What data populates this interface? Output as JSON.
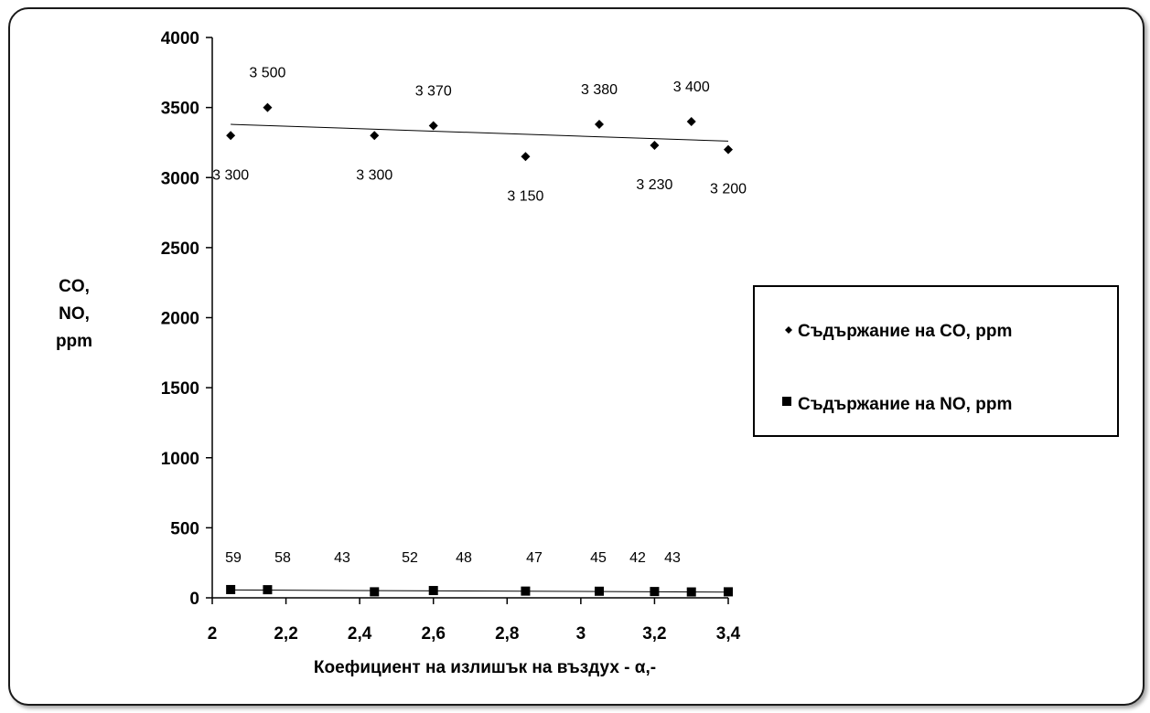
{
  "chart_data": {
    "type": "scatter",
    "ylabel_lines": [
      "CO,",
      "NO,",
      "ppm"
    ],
    "xlabel": "Коефициент на излишък на въздух - α,-",
    "xlim": [
      2,
      3.4
    ],
    "ylim": [
      0,
      4000
    ],
    "x_ticks": [
      2,
      2.2,
      2.4,
      2.6,
      2.8,
      3,
      3.2,
      3.4
    ],
    "x_tick_labels": [
      "2",
      "2,2",
      "2,4",
      "2,6",
      "2,8",
      "3",
      "3,2",
      "3,4"
    ],
    "y_ticks": [
      0,
      500,
      1000,
      1500,
      2000,
      2500,
      3000,
      3500,
      4000
    ],
    "y_tick_labels": [
      "0",
      "500",
      "1000",
      "1500",
      "2000",
      "2500",
      "3000",
      "3500",
      "4000"
    ],
    "grid": false,
    "legend_position": "right",
    "series": [
      {
        "name": "Съдържание на CO, ppm",
        "marker": "diamond",
        "color": "#000000",
        "x": [
          2.05,
          2.15,
          2.44,
          2.6,
          2.85,
          3.05,
          3.2,
          3.3,
          3.4
        ],
        "y": [
          3300,
          3500,
          3300,
          3370,
          3150,
          3380,
          3230,
          3400,
          3200
        ],
        "labels": [
          "3 300",
          "3 500",
          "3 300",
          "3 370",
          "3 150",
          "3 380",
          "3 230",
          "3 400",
          "3 200"
        ],
        "trendline": {
          "from": [
            2.05,
            3380
          ],
          "to": [
            3.4,
            3260
          ]
        }
      },
      {
        "name": "Съдържание на NO, ppm",
        "marker": "square",
        "color": "#000000",
        "x": [
          2.05,
          2.15,
          2.44,
          2.6,
          2.85,
          3.05,
          3.2,
          3.3,
          3.4
        ],
        "y": [
          59,
          58,
          43,
          52,
          48,
          47,
          45,
          42,
          43
        ],
        "labels": [
          "59",
          "58",
          "43",
          "52",
          "48",
          "47",
          "45",
          "42",
          "43"
        ],
        "trendline": {
          "from": [
            2.05,
            56
          ],
          "to": [
            3.4,
            41
          ]
        }
      }
    ]
  }
}
